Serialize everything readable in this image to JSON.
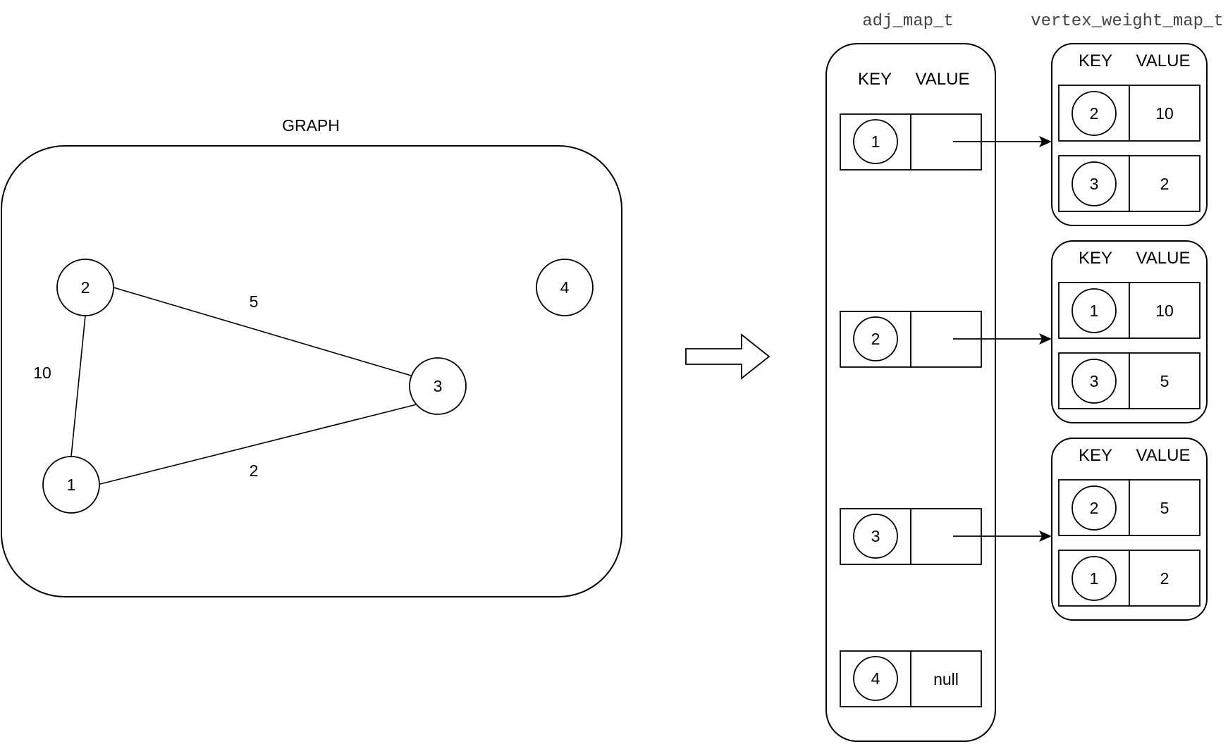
{
  "graph": {
    "title": "GRAPH",
    "vertices": [
      {
        "id": "v1",
        "label": "1"
      },
      {
        "id": "v2",
        "label": "2"
      },
      {
        "id": "v3",
        "label": "3"
      },
      {
        "id": "v4",
        "label": "4"
      }
    ],
    "edges": [
      {
        "from": "v2",
        "to": "v3",
        "weight": "5"
      },
      {
        "from": "v2",
        "to": "v1",
        "weight": "10"
      },
      {
        "from": "v1",
        "to": "v3",
        "weight": "2"
      }
    ]
  },
  "adj_map": {
    "title": "adj_map_t",
    "key_header": "KEY",
    "value_header": "VALUE",
    "entries": [
      {
        "key": "1",
        "value": ""
      },
      {
        "key": "2",
        "value": ""
      },
      {
        "key": "3",
        "value": ""
      },
      {
        "key": "4",
        "value": "null"
      }
    ]
  },
  "weight_maps": {
    "title": "vertex_weight_map_t",
    "maps": [
      {
        "key_header": "KEY",
        "value_header": "VALUE",
        "rows": [
          {
            "key": "2",
            "value": "10"
          },
          {
            "key": "3",
            "value": "2"
          }
        ]
      },
      {
        "key_header": "KEY",
        "value_header": "VALUE",
        "rows": [
          {
            "key": "1",
            "value": "10"
          },
          {
            "key": "3",
            "value": "5"
          }
        ]
      },
      {
        "key_header": "KEY",
        "value_header": "VALUE",
        "rows": [
          {
            "key": "2",
            "value": "5"
          },
          {
            "key": "1",
            "value": "2"
          }
        ]
      }
    ]
  }
}
